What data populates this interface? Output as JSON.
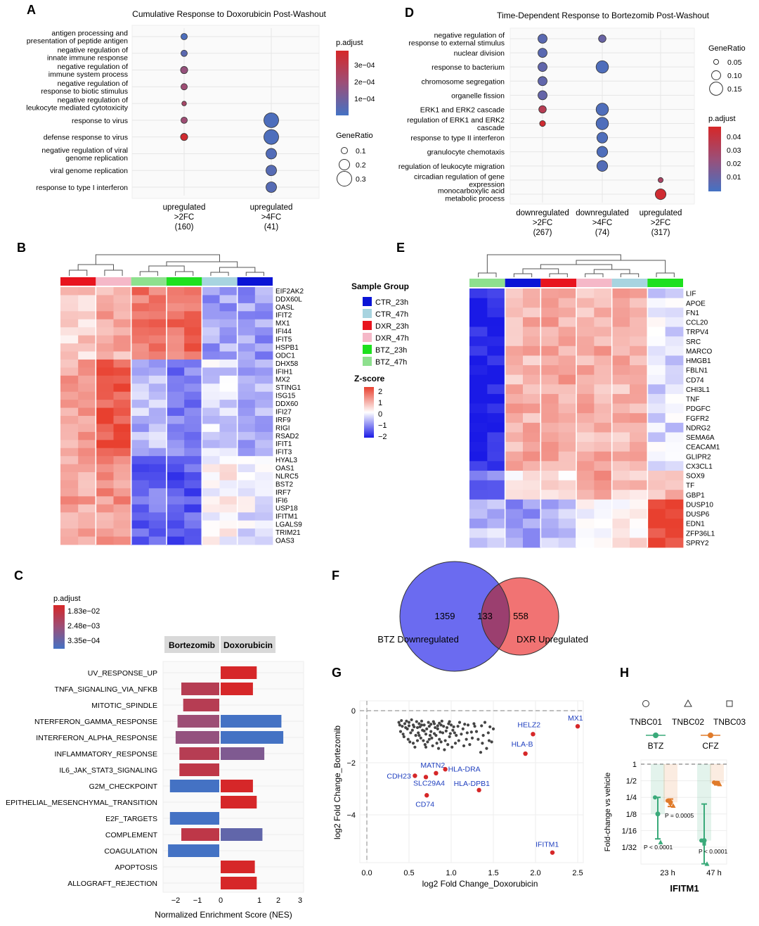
{
  "panel_labels": [
    "A",
    "B",
    "C",
    "D",
    "E",
    "F",
    "G",
    "H"
  ],
  "colors": {
    "high": "#d62728",
    "mid": "#9b4f78",
    "low": "#4472c4",
    "heat_red": "#e8402f",
    "heat_blue": "#1a1ae6",
    "venn_blue": "#6b6bf0",
    "venn_red": "#f06b6b",
    "venn_overlap": "#9b3f6f",
    "sig_red": "#d62728",
    "gene_label": "#1f3fbf",
    "btz_green": "#3aaa7a",
    "cfz_orange": "#e07b2a"
  },
  "panelA": {
    "title": "Cumulative Response to Doxorubicin Post-Washout",
    "terms": [
      [
        "antigen processing and",
        "presentation of peptide antigen"
      ],
      [
        "negative regulation of",
        "innate immune response"
      ],
      [
        "negative regulation of",
        "immune system process"
      ],
      [
        "negative regulation of",
        "response to biotic stimulus"
      ],
      [
        "negative regulation of",
        "leukocyte mediated cytotoxicity"
      ],
      [
        "response to virus"
      ],
      [
        "defense response to virus"
      ],
      [
        "negative regulation of viral",
        "genome replication"
      ],
      [
        "viral genome replication"
      ],
      [
        "response to type I interferon"
      ]
    ],
    "groups": [
      [
        "upregulated",
        ">2FC",
        "(160)"
      ],
      [
        "upregulated",
        ">4FC",
        "(41)"
      ]
    ],
    "points": [
      {
        "term": 0,
        "group": 0,
        "ratio": 0.1,
        "padj": 2e-05
      },
      {
        "term": 1,
        "group": 0,
        "ratio": 0.1,
        "padj": 5e-05
      },
      {
        "term": 2,
        "group": 0,
        "ratio": 0.12,
        "padj": 0.00018
      },
      {
        "term": 3,
        "group": 0,
        "ratio": 0.1,
        "padj": 0.0002
      },
      {
        "term": 4,
        "group": 0,
        "ratio": 0.06,
        "padj": 0.00023
      },
      {
        "term": 5,
        "group": 0,
        "ratio": 0.1,
        "padj": 0.0002
      },
      {
        "term": 6,
        "group": 0,
        "ratio": 0.12,
        "padj": 0.00036
      },
      {
        "term": 5,
        "group": 1,
        "ratio": 0.3,
        "padj": 2e-05
      },
      {
        "term": 6,
        "group": 1,
        "ratio": 0.3,
        "padj": 2e-05
      },
      {
        "term": 7,
        "group": 1,
        "ratio": 0.2,
        "padj": 3e-05
      },
      {
        "term": 8,
        "group": 1,
        "ratio": 0.2,
        "padj": 4e-05
      },
      {
        "term": 9,
        "group": 1,
        "ratio": 0.2,
        "padj": 4e-05
      }
    ],
    "colorbar_title": "p.adjust",
    "colorbar_ticks": [
      "3e−04",
      "2e−04",
      "1e−04"
    ],
    "size_title": "GeneRatio",
    "size_ticks": [
      "0.1",
      "0.2",
      "0.3"
    ]
  },
  "panelD": {
    "title": "Time-Dependent Response to Bortezomib Post-Washout",
    "terms": [
      [
        "negative regulation of",
        "response to external stimulus"
      ],
      [
        "nuclear division"
      ],
      [
        "response to bacterium"
      ],
      [
        "chromosome segregation"
      ],
      [
        "organelle fission"
      ],
      [
        "ERK1 and ERK2 cascade"
      ],
      [
        "regulation of ERK1 and ERK2",
        "cascade"
      ],
      [
        "response to type II interferon"
      ],
      [
        "granulocyte chemotaxis"
      ],
      [
        "regulation of leukocyte migration"
      ],
      [
        "circadian regulation of gene",
        "expression"
      ],
      [
        "monocarboxylic acid",
        "metabolic process"
      ]
    ],
    "groups": [
      [
        "downregulated",
        ">2FC",
        "(267)"
      ],
      [
        "downregulated",
        ">4FC",
        "(74)"
      ],
      [
        "upregulated",
        ">2FC",
        "(317)"
      ]
    ],
    "points": [
      {
        "term": 0,
        "group": 0,
        "ratio": 0.1,
        "padj": 0.006
      },
      {
        "term": 1,
        "group": 0,
        "ratio": 0.1,
        "padj": 0.006
      },
      {
        "term": 2,
        "group": 0,
        "ratio": 0.1,
        "padj": 0.008
      },
      {
        "term": 3,
        "group": 0,
        "ratio": 0.1,
        "padj": 0.008
      },
      {
        "term": 4,
        "group": 0,
        "ratio": 0.1,
        "padj": 0.009
      },
      {
        "term": 5,
        "group": 0,
        "ratio": 0.08,
        "padj": 0.035
      },
      {
        "term": 6,
        "group": 0,
        "ratio": 0.06,
        "padj": 0.045
      },
      {
        "term": 0,
        "group": 1,
        "ratio": 0.08,
        "padj": 0.01
      },
      {
        "term": 2,
        "group": 1,
        "ratio": 0.14,
        "padj": 0.003
      },
      {
        "term": 5,
        "group": 1,
        "ratio": 0.14,
        "padj": 0.003
      },
      {
        "term": 6,
        "group": 1,
        "ratio": 0.14,
        "padj": 0.003
      },
      {
        "term": 7,
        "group": 1,
        "ratio": 0.12,
        "padj": 0.003
      },
      {
        "term": 8,
        "group": 1,
        "ratio": 0.12,
        "padj": 0.003
      },
      {
        "term": 9,
        "group": 1,
        "ratio": 0.12,
        "padj": 0.004
      },
      {
        "term": 10,
        "group": 2,
        "ratio": 0.05,
        "padj": 0.03
      },
      {
        "term": 11,
        "group": 2,
        "ratio": 0.12,
        "padj": 0.045
      }
    ],
    "size_title": "GeneRatio",
    "size_ticks": [
      "0.05",
      "0.10",
      "0.15"
    ],
    "colorbar_title": "p.adjust",
    "colorbar_ticks": [
      "0.04",
      "0.03",
      "0.02",
      "0.01"
    ]
  },
  "panelB": {
    "genes": [
      "EIF2AK2",
      "DDX60L",
      "OASL",
      "IFIT2",
      "MX1",
      "IFI44",
      "IFIT5",
      "HSPB1",
      "ODC1",
      "DHX58",
      "IFIH1",
      "MX2",
      "STING1",
      "ISG15",
      "DDX60",
      "IFI27",
      "IRF9",
      "RIGI",
      "RSAD2",
      "IFIT1",
      "IFIT3",
      "HYAL3",
      "OAS1",
      "NLRC5",
      "BST2",
      "IRF7",
      "IFI6",
      "USP18",
      "IFITM1",
      "LGALS9",
      "TRIM21",
      "OAS3"
    ],
    "group_order": [
      "DXR_23h",
      "DXR_47h",
      "BTZ_47h",
      "BTZ_23h",
      "CTR_47h",
      "CTR_23h"
    ]
  },
  "panelE": {
    "genes": [
      "LIF",
      "APOE",
      "FN1",
      "CCL20",
      "TRPV4",
      "SRC",
      "MARCO",
      "HMGB1",
      "FBLN1",
      "CD74",
      "CHI3L1",
      "TNF",
      "PDGFC",
      "FGFR2",
      "NDRG2",
      "SEMA6A",
      "CEACAM1",
      "GLIPR2",
      "CX3CL1",
      "SOX9",
      "TF",
      "GBP1",
      "DUSP10",
      "DUSP6",
      "EDN1",
      "ZFP36L1",
      "SPRY2"
    ],
    "group_order": [
      "BTZ_47h",
      "CTR_23h",
      "DXR_23h",
      "DXR_47h",
      "CTR_47h",
      "BTZ_23h"
    ]
  },
  "legend_groups": {
    "title": "Sample Group",
    "items": [
      {
        "label": "CTR_23h",
        "color": "#0a14d6"
      },
      {
        "label": "CTR_47h",
        "color": "#a8d4e0"
      },
      {
        "label": "DXR_23h",
        "color": "#e8141e"
      },
      {
        "label": "DXR_47h",
        "color": "#f5b8c8"
      },
      {
        "label": "BTZ_23h",
        "color": "#1ee01e"
      },
      {
        "label": "BTZ_47h",
        "color": "#8ee08e"
      }
    ],
    "zscore_title": "Z-score",
    "zscore_ticks": [
      "2",
      "1",
      "0",
      "−1",
      "−2"
    ]
  },
  "panelC": {
    "colorbar_title": "p.adjust",
    "colorbar_ticks": [
      "1.83e−02",
      "2.48e−03",
      "3.35e−04"
    ],
    "facets": [
      "Bortezomib",
      "Doxorubicin"
    ],
    "xlabel": "Normalized Enrichment Score (NES)",
    "xticks": [
      "−2",
      "−1",
      "0",
      "1",
      "2",
      "3"
    ],
    "pathways": [
      {
        "name": "UV_RESPONSE_UP",
        "btz": null,
        "dxr": 0.95,
        "btz_p": null,
        "dxr_p": 0.018
      },
      {
        "name": "TNFA_SIGNALING_VIA_NFKB",
        "btz": -1.0,
        "dxr": 0.85,
        "btz_p": 0.006,
        "dxr_p": 0.018
      },
      {
        "name": "MITOTIC_SPINDLE",
        "btz": -0.95,
        "dxr": null,
        "btz_p": 0.006,
        "dxr_p": null
      },
      {
        "name": "NTERFERON_GAMMA_RESPONSE",
        "btz": -1.1,
        "dxr": 1.6,
        "btz_p": 0.0025,
        "dxr_p": 0.0003
      },
      {
        "name": "INTERFERON_ALPHA_RESPONSE",
        "btz": -1.15,
        "dxr": 1.65,
        "btz_p": 0.002,
        "dxr_p": 0.0003
      },
      {
        "name": "INFLAMMATORY_RESPONSE",
        "btz": -1.05,
        "dxr": 1.15,
        "btz_p": 0.006,
        "dxr_p": 0.0012
      },
      {
        "name": "IL6_JAK_STAT3_SIGNALING",
        "btz": -1.05,
        "dxr": null,
        "btz_p": 0.008,
        "dxr_p": null
      },
      {
        "name": "G2M_CHECKPOINT",
        "btz": -1.3,
        "dxr": 0.85,
        "btz_p": 0.0003,
        "dxr_p": 0.018
      },
      {
        "name": "EPITHELIAL_MESENCHYMAL_TRANSITION",
        "btz": null,
        "dxr": 0.95,
        "btz_p": null,
        "dxr_p": 0.018
      },
      {
        "name": "E2F_TARGETS",
        "btz": -1.3,
        "dxr": null,
        "btz_p": 0.0003,
        "dxr_p": null
      },
      {
        "name": "COMPLEMENT",
        "btz": -1.0,
        "dxr": 1.1,
        "btz_p": 0.008,
        "dxr_p": 0.0006
      },
      {
        "name": "COAGULATION",
        "btz": -1.35,
        "dxr": null,
        "btz_p": 0.0003,
        "dxr_p": null
      },
      {
        "name": "APOPTOSIS",
        "btz": null,
        "dxr": 0.9,
        "btz_p": null,
        "dxr_p": 0.018
      },
      {
        "name": "ALLOGRAFT_REJECTION",
        "btz": null,
        "dxr": 0.95,
        "btz_p": null,
        "dxr_p": 0.018
      }
    ]
  },
  "panelF": {
    "left_count": "1359",
    "overlap_count": "133",
    "right_count": "558",
    "left_label": "BTZ Downregulated",
    "right_label": "DXR Upregulated"
  },
  "panelG": {
    "xlabel": "log2 Fold Change_Doxorubicin",
    "ylabel": "log2 Fold Change_Bortezomib",
    "xticks": [
      "0.0",
      "0.5",
      "1.0",
      "1.5",
      "2.0",
      "2.5"
    ],
    "yticks": [
      "0",
      "−2",
      "−4"
    ],
    "xlim": [
      -0.05,
      2.6
    ],
    "ylim": [
      -5.6,
      0.25
    ],
    "labeled_points": [
      {
        "label": "MX1",
        "x": 2.5,
        "y": -0.6
      },
      {
        "label": "HELZ2",
        "x": 1.97,
        "y": -0.9
      },
      {
        "label": "HLA-B",
        "x": 1.88,
        "y": -1.65
      },
      {
        "label": "MATN2",
        "x": 0.82,
        "y": -2.4
      },
      {
        "label": "HLA-DRA",
        "x": 0.93,
        "y": -2.25
      },
      {
        "label": "CDH23",
        "x": 0.57,
        "y": -2.5
      },
      {
        "label": "SLC29A4",
        "x": 0.7,
        "y": -2.55
      },
      {
        "label": "HLA-DPB1",
        "x": 1.33,
        "y": -3.05
      },
      {
        "label": "CD74",
        "x": 0.71,
        "y": -3.25
      },
      {
        "label": "IFITM1",
        "x": 2.2,
        "y": -5.45
      }
    ],
    "background_points": [
      [
        0.38,
        -0.45
      ],
      [
        0.42,
        -0.6
      ],
      [
        0.45,
        -0.5
      ],
      [
        0.48,
        -0.7
      ],
      [
        0.5,
        -0.45
      ],
      [
        0.52,
        -0.85
      ],
      [
        0.55,
        -0.55
      ],
      [
        0.58,
        -0.95
      ],
      [
        0.6,
        -0.65
      ],
      [
        0.62,
        -0.5
      ],
      [
        0.64,
        -1.05
      ],
      [
        0.66,
        -0.75
      ],
      [
        0.68,
        -0.55
      ],
      [
        0.7,
        -0.9
      ],
      [
        0.72,
        -1.2
      ],
      [
        0.74,
        -0.6
      ],
      [
        0.76,
        -0.8
      ],
      [
        0.78,
        -1.35
      ],
      [
        0.8,
        -0.5
      ],
      [
        0.82,
        -0.95
      ],
      [
        0.84,
        -0.7
      ],
      [
        0.86,
        -1.1
      ],
      [
        0.88,
        -0.55
      ],
      [
        0.9,
        -0.85
      ],
      [
        0.92,
        -1.5
      ],
      [
        0.95,
        -0.65
      ],
      [
        0.98,
        -1.0
      ],
      [
        1.02,
        -0.75
      ],
      [
        1.05,
        -1.25
      ],
      [
        1.08,
        -0.6
      ],
      [
        1.12,
        -0.9
      ],
      [
        1.15,
        -1.35
      ],
      [
        1.2,
        -0.55
      ],
      [
        1.25,
        -1.05
      ],
      [
        1.3,
        -0.8
      ],
      [
        1.35,
        -1.6
      ],
      [
        1.4,
        -0.45
      ],
      [
        1.45,
        -1.15
      ],
      [
        1.5,
        -0.7
      ],
      [
        0.4,
        -0.8
      ],
      [
        0.44,
        -1.0
      ],
      [
        0.47,
        -0.4
      ],
      [
        0.51,
        -1.2
      ],
      [
        0.53,
        -0.35
      ],
      [
        0.57,
        -1.4
      ],
      [
        0.61,
        -0.85
      ],
      [
        0.65,
        -0.4
      ],
      [
        0.69,
        -1.3
      ],
      [
        0.73,
        -0.45
      ],
      [
        0.77,
        -1.05
      ],
      [
        0.81,
        -0.65
      ],
      [
        0.85,
        -1.45
      ],
      [
        0.89,
        -0.4
      ],
      [
        0.93,
        -1.15
      ],
      [
        0.97,
        -0.5
      ],
      [
        1.01,
        -1.4
      ],
      [
        1.06,
        -0.95
      ],
      [
        1.1,
        -0.45
      ],
      [
        1.18,
        -1.1
      ],
      [
        1.28,
        -0.6
      ],
      [
        1.38,
        -0.95
      ],
      [
        1.42,
        -1.45
      ],
      [
        0.46,
        -0.65
      ],
      [
        0.54,
        -0.75
      ],
      [
        0.59,
        -0.42
      ],
      [
        0.63,
        -0.62
      ],
      [
        0.67,
        -1.15
      ],
      [
        0.71,
        -0.7
      ],
      [
        0.75,
        -0.95
      ],
      [
        0.79,
        -0.42
      ],
      [
        0.83,
        -1.25
      ],
      [
        0.87,
        -0.82
      ],
      [
        0.91,
        -0.6
      ],
      [
        0.96,
        -1.3
      ],
      [
        1.0,
        -0.55
      ],
      [
        1.04,
        -0.85
      ],
      [
        1.14,
        -0.7
      ],
      [
        1.22,
        -1.3
      ],
      [
        1.32,
        -1.1
      ],
      [
        1.44,
        -0.85
      ],
      [
        1.48,
        -1.2
      ],
      [
        0.39,
        -0.55
      ],
      [
        0.43,
        -0.9
      ],
      [
        0.49,
        -1.1
      ],
      [
        0.56,
        -0.62
      ],
      [
        0.62,
        -0.95
      ],
      [
        0.68,
        -0.78
      ],
      [
        0.74,
        -1.1
      ],
      [
        0.8,
        -0.88
      ],
      [
        0.86,
        -0.48
      ],
      [
        0.94,
        -0.78
      ],
      [
        1.03,
        -0.62
      ],
      [
        1.16,
        -0.52
      ],
      [
        1.24,
        -0.82
      ],
      [
        1.36,
        -0.58
      ],
      [
        0.41,
        -0.38
      ],
      [
        0.5,
        -0.58
      ],
      [
        0.6,
        -1.15
      ],
      [
        0.7,
        -1.4
      ],
      [
        0.84,
        -0.58
      ],
      [
        0.99,
        -0.88
      ],
      [
        1.09,
        -1.15
      ],
      [
        1.19,
        -0.85
      ],
      [
        1.27,
        -0.5
      ],
      [
        1.37,
        -1.25
      ],
      [
        1.46,
        -0.62
      ],
      [
        0.55,
        -1.25
      ],
      [
        0.65,
        -0.55
      ],
      [
        0.76,
        -0.52
      ],
      [
        0.88,
        -1.2
      ],
      [
        0.98,
        -0.42
      ]
    ]
  },
  "panelH": {
    "shapes_legend": [
      "TNBC01",
      "TNBC02",
      "TNBC03"
    ],
    "drug_legend": [
      "BTZ",
      "CFZ"
    ],
    "ylabel": "Fold-change vs vehicle",
    "yticks": [
      "1",
      "1/2",
      "1/4",
      "1/8",
      "1/16",
      "1/32"
    ],
    "xticks": [
      "23 h",
      "47 h"
    ],
    "title": "IFITM1",
    "pvals": [
      "P = 0.0005",
      "P < 0.0001",
      "P < 0.0001"
    ],
    "series": [
      {
        "drug": "BTZ",
        "time": "23 h",
        "mean_log2": -3.0,
        "err_lo": -4.5,
        "err_hi": -2.0,
        "points": [
          -2.0,
          -3.0,
          -4.7
        ]
      },
      {
        "drug": "CFZ",
        "time": "23 h",
        "mean_log2": -2.3,
        "err_lo": -2.55,
        "err_hi": -2.1,
        "points": [
          -2.2,
          -2.35,
          -2.5
        ]
      },
      {
        "drug": "BTZ",
        "time": "47 h",
        "mean_log2": -4.6,
        "err_lo": -6.0,
        "err_hi": -2.4,
        "points": [
          -4.6,
          -4.8,
          -6.0
        ]
      },
      {
        "drug": "CFZ",
        "time": "47 h",
        "mean_log2": -1.15,
        "err_lo": -1.25,
        "err_hi": -1.05,
        "points": [
          -1.1,
          -1.15,
          -1.2
        ]
      }
    ]
  }
}
